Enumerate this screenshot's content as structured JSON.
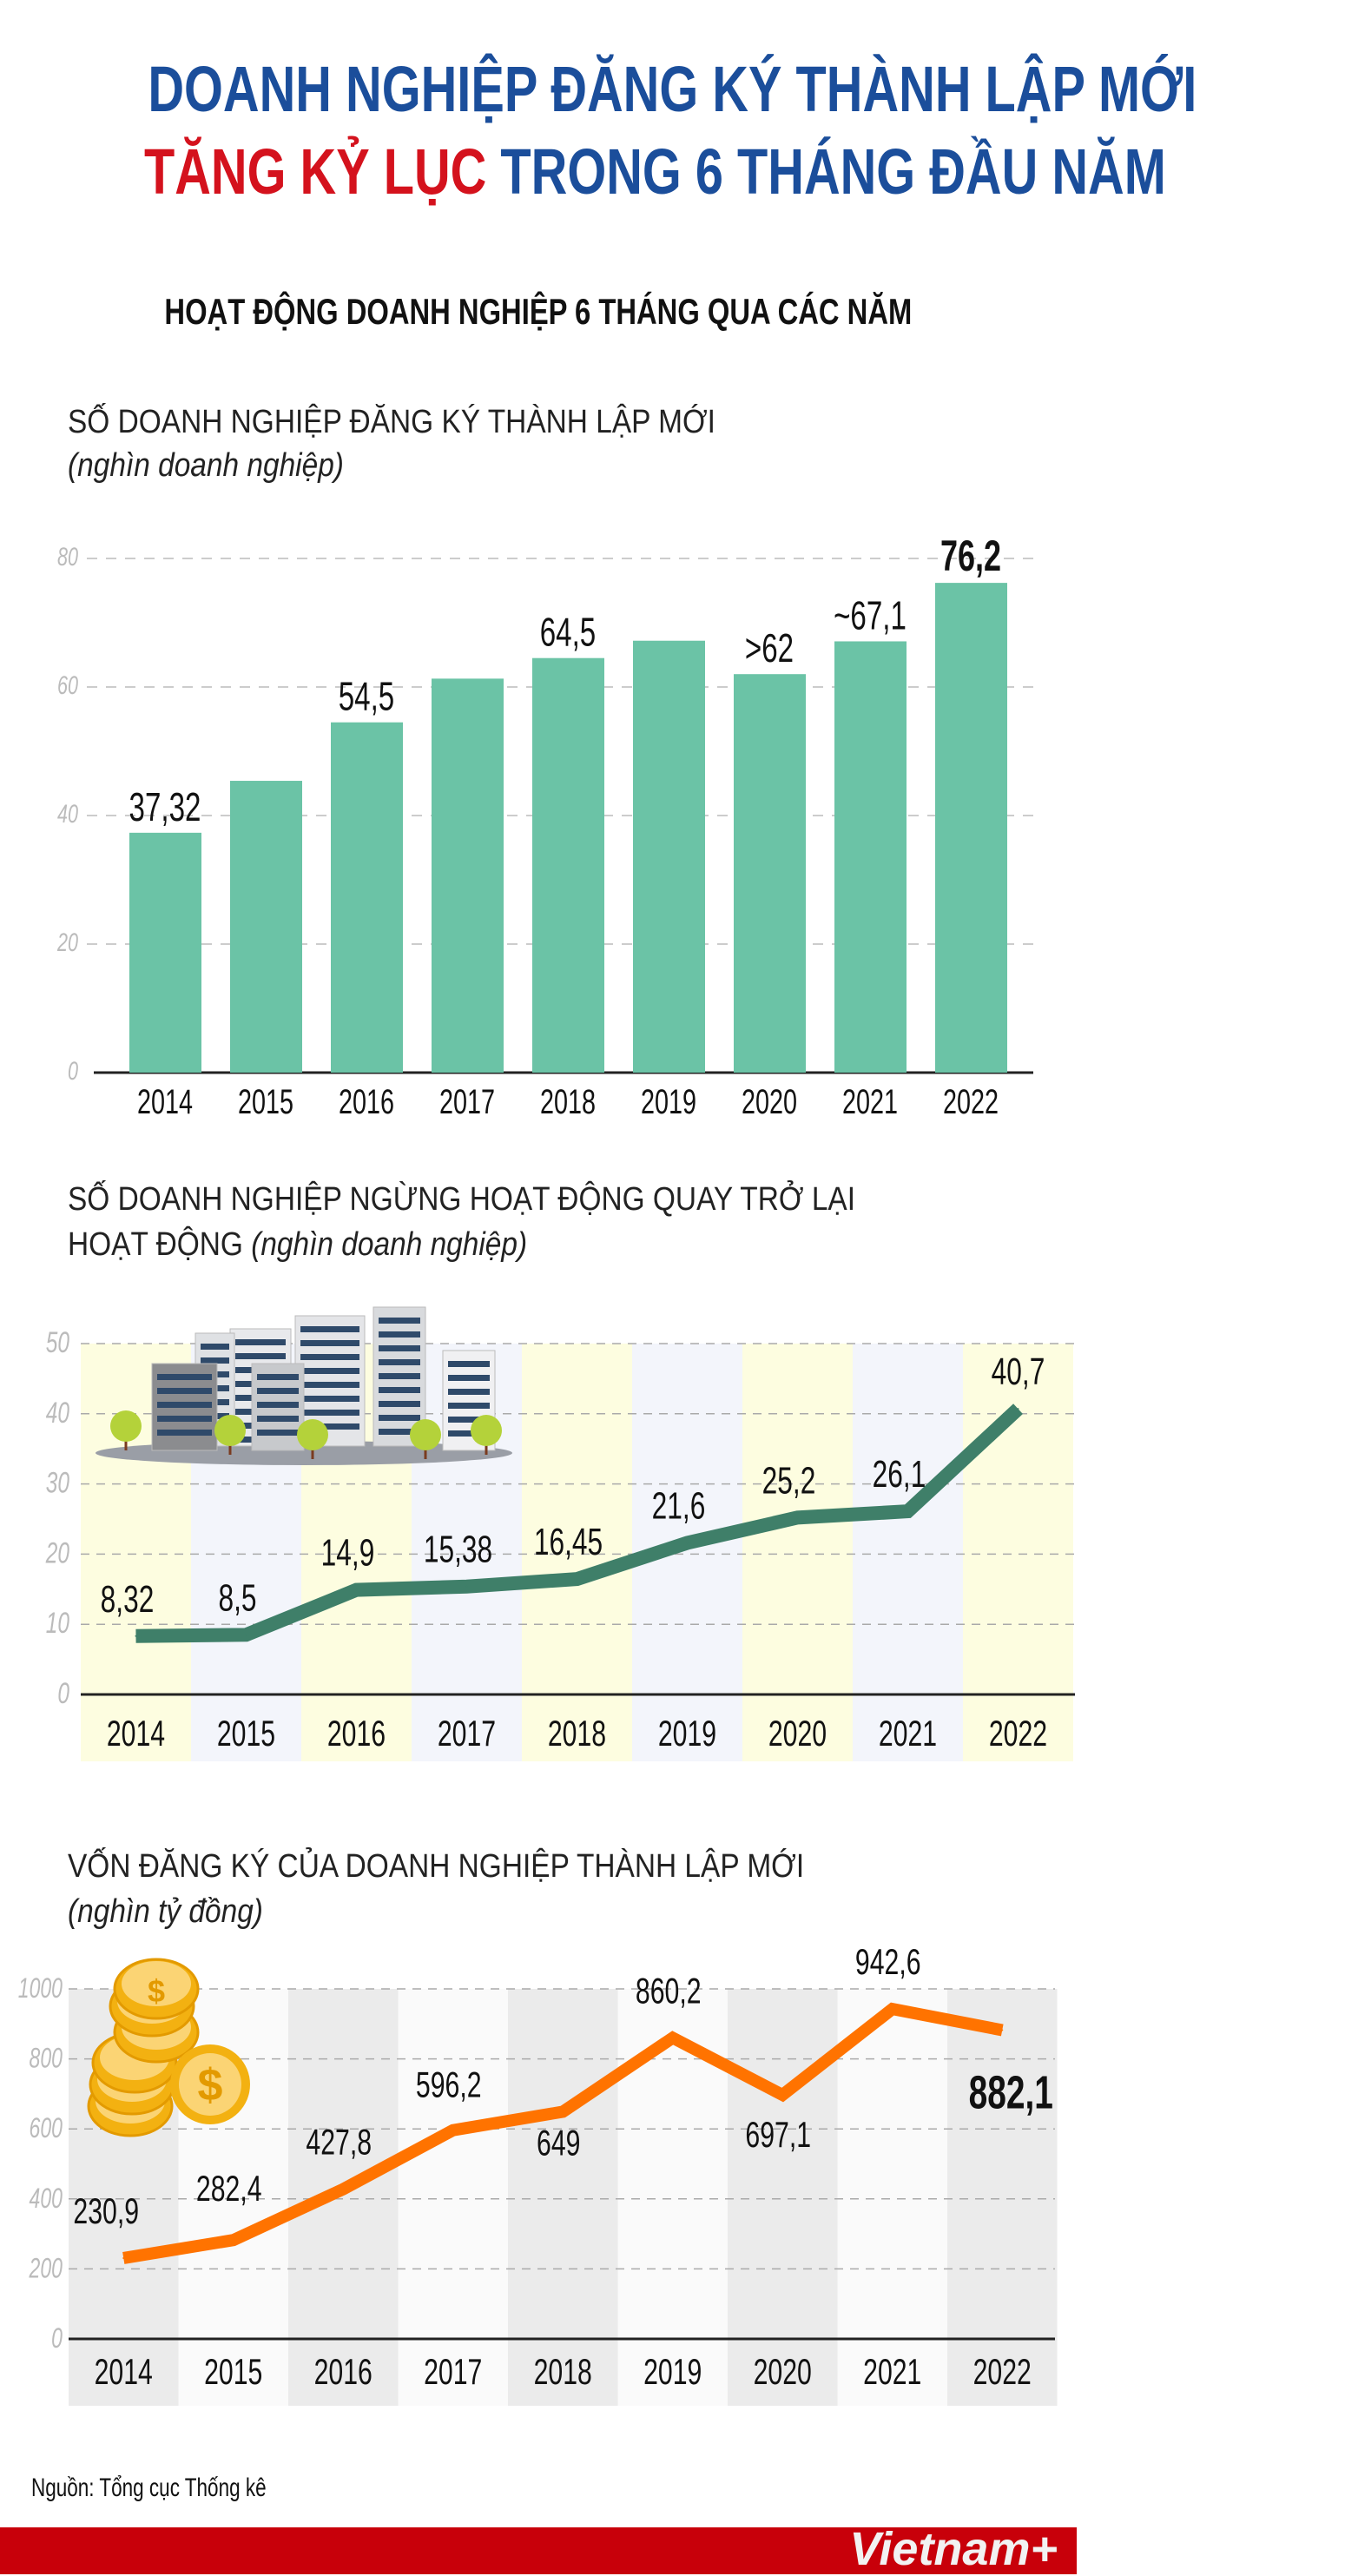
{
  "header": {
    "title_line1": "DOANH NGHIỆP ĐĂNG KÝ THÀNH LẬP MỚI",
    "title_line2_highlight": "TĂNG KỶ LỤC",
    "title_line2_rest": " TRONG 6 THÁNG ĐẦU NĂM",
    "subtitle": "HOẠT ĐỘNG DOANH NGHIỆP 6 THÁNG QUA CÁC NĂM"
  },
  "colors": {
    "title_blue": "#1b4e9b",
    "title_red": "#d4121d",
    "bar": "#6bc3a6",
    "line2": "#3f7f69",
    "line3": "#ff7300",
    "footer": "#c8000a"
  },
  "chart_data": [
    {
      "type": "bar",
      "title": "SỐ DOANH NGHIỆP ĐĂNG KÝ THÀNH LẬP MỚI",
      "unit": "(nghìn doanh nghiệp)",
      "categories": [
        "2014",
        "2015",
        "2016",
        "2017",
        "2018",
        "2019",
        "2020",
        "2021",
        "2022"
      ],
      "values": [
        37.32,
        45.4,
        54.5,
        61.3,
        64.5,
        67.2,
        62,
        67.1,
        76.2
      ],
      "labels": [
        "37,32",
        "",
        "54,5",
        "",
        "64,5",
        "",
        ">62",
        "~67,1",
        "76,2"
      ],
      "ylim": [
        0,
        80
      ],
      "yticks": [
        "0",
        "20",
        "40",
        "60",
        "80"
      ],
      "grid": true
    },
    {
      "type": "line",
      "title": "SỐ DOANH NGHIỆP NGỪNG HOẠT ĐỘNG QUAY TRỞ LẠI",
      "title_line2": "HOẠT ĐỘNG",
      "unit": "(nghìn doanh nghiệp)",
      "categories": [
        "2014",
        "2015",
        "2016",
        "2017",
        "2018",
        "2019",
        "2020",
        "2021",
        "2022"
      ],
      "values": [
        8.32,
        8.5,
        14.9,
        15.38,
        16.45,
        21.6,
        25.2,
        26.1,
        40.7
      ],
      "labels": [
        "8,32",
        "8,5",
        "14,9",
        "15,38",
        "16,45",
        "21,6",
        "25,2",
        "26,1",
        "40,7"
      ],
      "ylim": [
        0,
        50
      ],
      "yticks": [
        "0",
        "10",
        "20",
        "30",
        "40",
        "50"
      ],
      "grid": true,
      "icon": "buildings-illustration"
    },
    {
      "type": "line",
      "title": "VỐN ĐĂNG KÝ CỦA DOANH NGHIỆP THÀNH LẬP MỚI",
      "unit": "(nghìn tỷ đồng)",
      "categories": [
        "2014",
        "2015",
        "2016",
        "2017",
        "2018",
        "2019",
        "2020",
        "2021",
        "2022"
      ],
      "values": [
        230.9,
        282.4,
        427.8,
        596.2,
        649,
        860.2,
        697.1,
        942.6,
        882.1
      ],
      "labels": [
        "230,9",
        "282,4",
        "427,8",
        "596,2",
        "649",
        "860,2",
        "697,1",
        "942,6",
        "882,1"
      ],
      "ylim": [
        0,
        1000
      ],
      "yticks": [
        "0",
        "200",
        "400",
        "600",
        "800",
        "1000"
      ],
      "grid": true,
      "icon": "coins-illustration"
    }
  ],
  "footer": {
    "source": "Nguồn: Tổng cục Thống kê",
    "logo": "Vietnam+"
  }
}
